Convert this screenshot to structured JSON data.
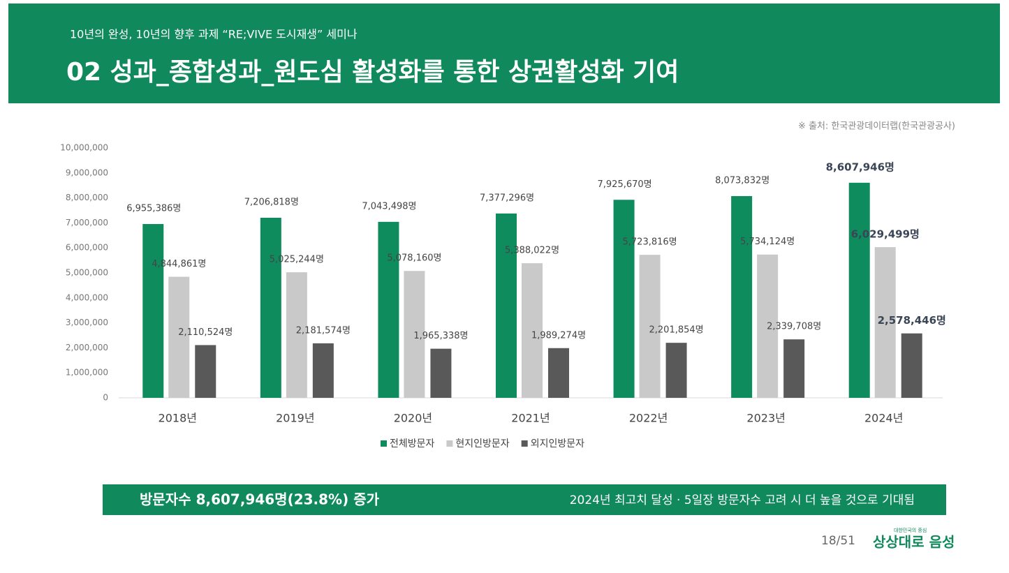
{
  "header": {
    "subtitle": "10년의 완성, 10년의 향후 과제 “RE;VIVE 도시재생” 세미나",
    "title": "02 성과_종합성과_원도심 활성화를 통한 상권활성화 기여"
  },
  "source": "※ 출처: 한국관광데이터랩(한국관광공사)",
  "chart_data": {
    "type": "bar",
    "categories": [
      "2018년",
      "2019년",
      "2020년",
      "2021년",
      "2022년",
      "2023년",
      "2024년"
    ],
    "series": [
      {
        "name": "전체방문자",
        "color": "#0f8c5e",
        "values": [
          6955386,
          7206818,
          7043498,
          7377296,
          7925670,
          8073832,
          8607946
        ],
        "value_labels": [
          "6,955,386명",
          "7,206,818명",
          "7,043,498명",
          "7,377,296명",
          "7,925,670명",
          "8,073,832명",
          "8,607,946명"
        ]
      },
      {
        "name": "현지인방문자",
        "color": "#c9c9c9",
        "values": [
          4844861,
          5025244,
          5078160,
          5388022,
          5723816,
          5734124,
          6029499
        ],
        "value_labels": [
          "4,844,861명",
          "5,025,244명",
          "5,078,160명",
          "5,388,022명",
          "5,723,816명",
          "5,734,124명",
          "6,029,499명"
        ]
      },
      {
        "name": "외지인방문자",
        "color": "#595959",
        "values": [
          2110524,
          2181574,
          1965338,
          1989274,
          2201854,
          2339708,
          2578446
        ],
        "value_labels": [
          "2,110,524명",
          "2,181,574명",
          "1,965,338명",
          "1,989,274명",
          "2,201,854명",
          "2,339,708명",
          "2,578,446명"
        ]
      }
    ],
    "ylim": [
      0,
      10000000
    ],
    "yticks": [
      0,
      {
        "value": 1000000,
        "label": "1,000,000"
      },
      {
        "value": 2000000,
        "label": "2,000,000"
      },
      {
        "value": 3000000,
        "label": "3,000,000"
      },
      {
        "value": 4000000,
        "label": "4,000,000"
      },
      {
        "value": 5000000,
        "label": "5,000,000"
      },
      {
        "value": 6000000,
        "label": "6,000,000"
      },
      {
        "value": 7000000,
        "label": "7,000,000"
      },
      {
        "value": 8000000,
        "label": "8,000,000"
      },
      {
        "value": 9000000,
        "label": "9,000,000"
      },
      {
        "value": 10000000,
        "label": "10,000,000"
      }
    ],
    "legend": "bottom"
  },
  "banner": {
    "left": "방문자수 8,607,946명(23.8%) 증가",
    "right": "2024년 최고치 달성 · 5일장 방문자수 고려 시 더 높을 것으로 기대됨"
  },
  "footer": {
    "page": "18/51",
    "logo_small": "대한민국의 중심",
    "logo": "상상대로 음성"
  }
}
